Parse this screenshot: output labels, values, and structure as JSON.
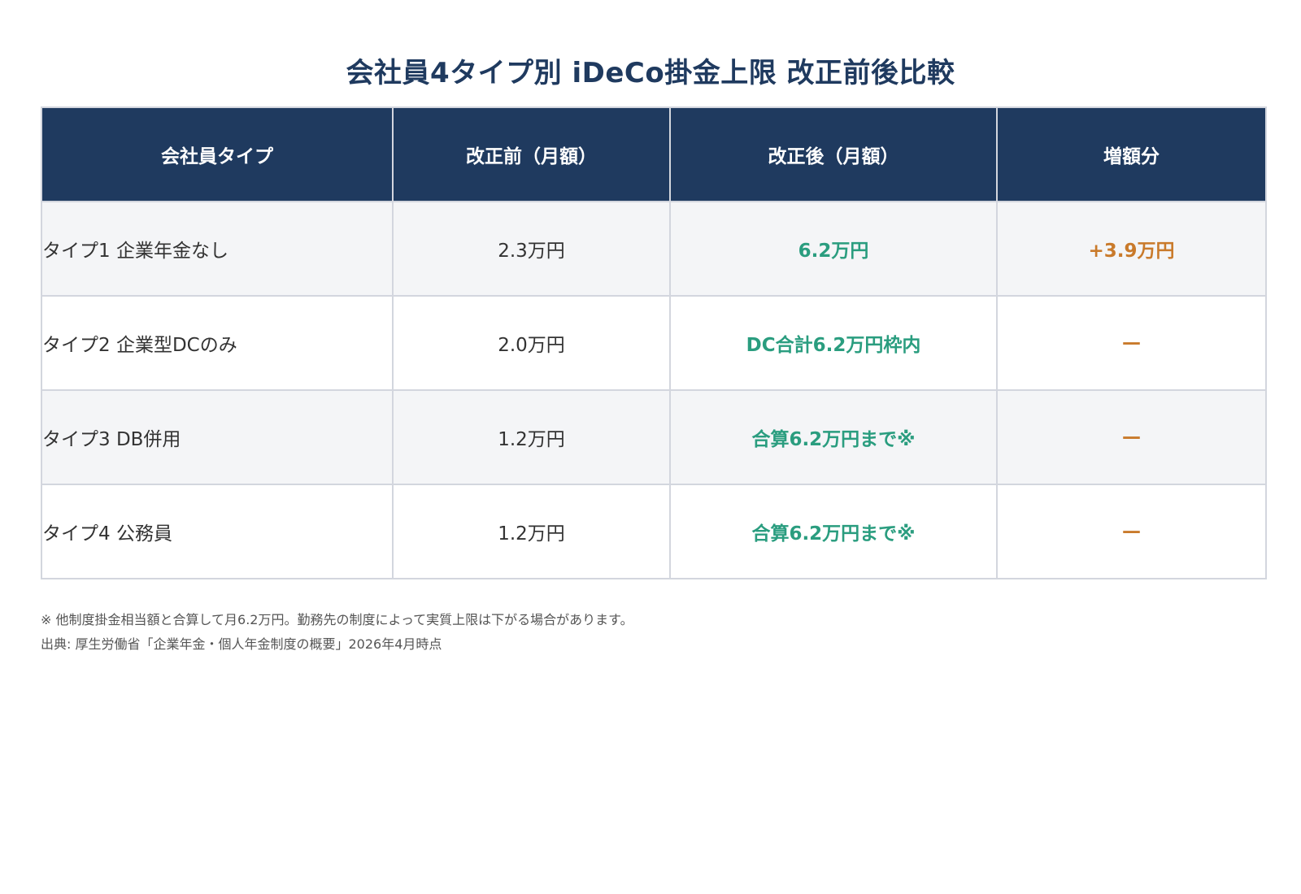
{
  "title": "会社員4タイプ別 iDeCo掛金上限 改正前後比較",
  "chart_data": {
    "type": "table",
    "columns": [
      "会社員タイプ",
      "改正前（月額）",
      "改正後（月額）",
      "増額分"
    ],
    "rows": [
      {
        "type": "タイプ1 企業年金なし",
        "before": "2.3万円",
        "after": "6.2万円",
        "increase": "+3.9万円"
      },
      {
        "type": "タイプ2 企業型DCのみ",
        "before": "2.0万円",
        "after": "DC合計6.2万円枠内",
        "increase": "—"
      },
      {
        "type": "タイプ3 DB併用",
        "before": "1.2万円",
        "after": "合算6.2万円まで※",
        "increase": "—"
      },
      {
        "type": "タイプ4 公務員",
        "before": "1.2万円",
        "after": "合算6.2万円まで※",
        "increase": "—"
      }
    ]
  },
  "notes": {
    "footnote": "※ 他制度掛金相当額と合算して月6.2万円。勤務先の制度によって実質上限は下がる場合があります。",
    "source": "出典: 厚生労働省「企業年金・個人年金制度の概要」2026年4月時点"
  },
  "colors": {
    "header_bg": "#1f3a5f",
    "after_value": "#2a9d7f",
    "increase_value": "#c97a2b",
    "row_alt_bg": "#f4f5f7"
  }
}
